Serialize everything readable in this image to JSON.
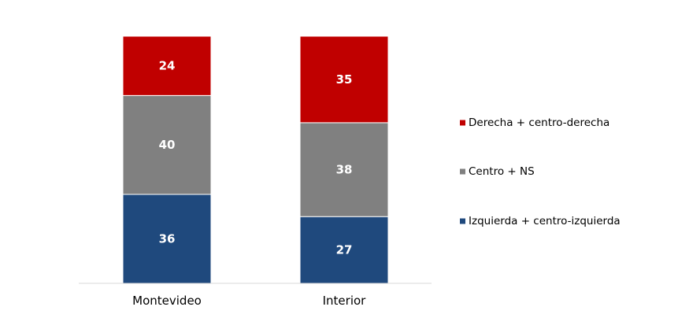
{
  "chart_data": {
    "type": "bar",
    "stacked": true,
    "orientation": "vertical",
    "categories": [
      "Montevideo",
      "Interior"
    ],
    "series": [
      {
        "name": "Izquierda + centro-izquierda",
        "values": [
          36,
          27
        ],
        "color": "#1f497d"
      },
      {
        "name": "Centro + NS",
        "values": [
          40,
          38
        ],
        "color": "#808080"
      },
      {
        "name": "Derecha + centro-derecha",
        "values": [
          24,
          35
        ],
        "color": "#c00000"
      }
    ],
    "legend_order": [
      "Derecha + centro-derecha",
      "Centro + NS",
      "Izquierda + centro-izquierda"
    ],
    "data_labels": true,
    "ylim": [
      0,
      100
    ],
    "grid": false,
    "legend_position": "right",
    "title": "",
    "xlabel": "",
    "ylabel": ""
  }
}
